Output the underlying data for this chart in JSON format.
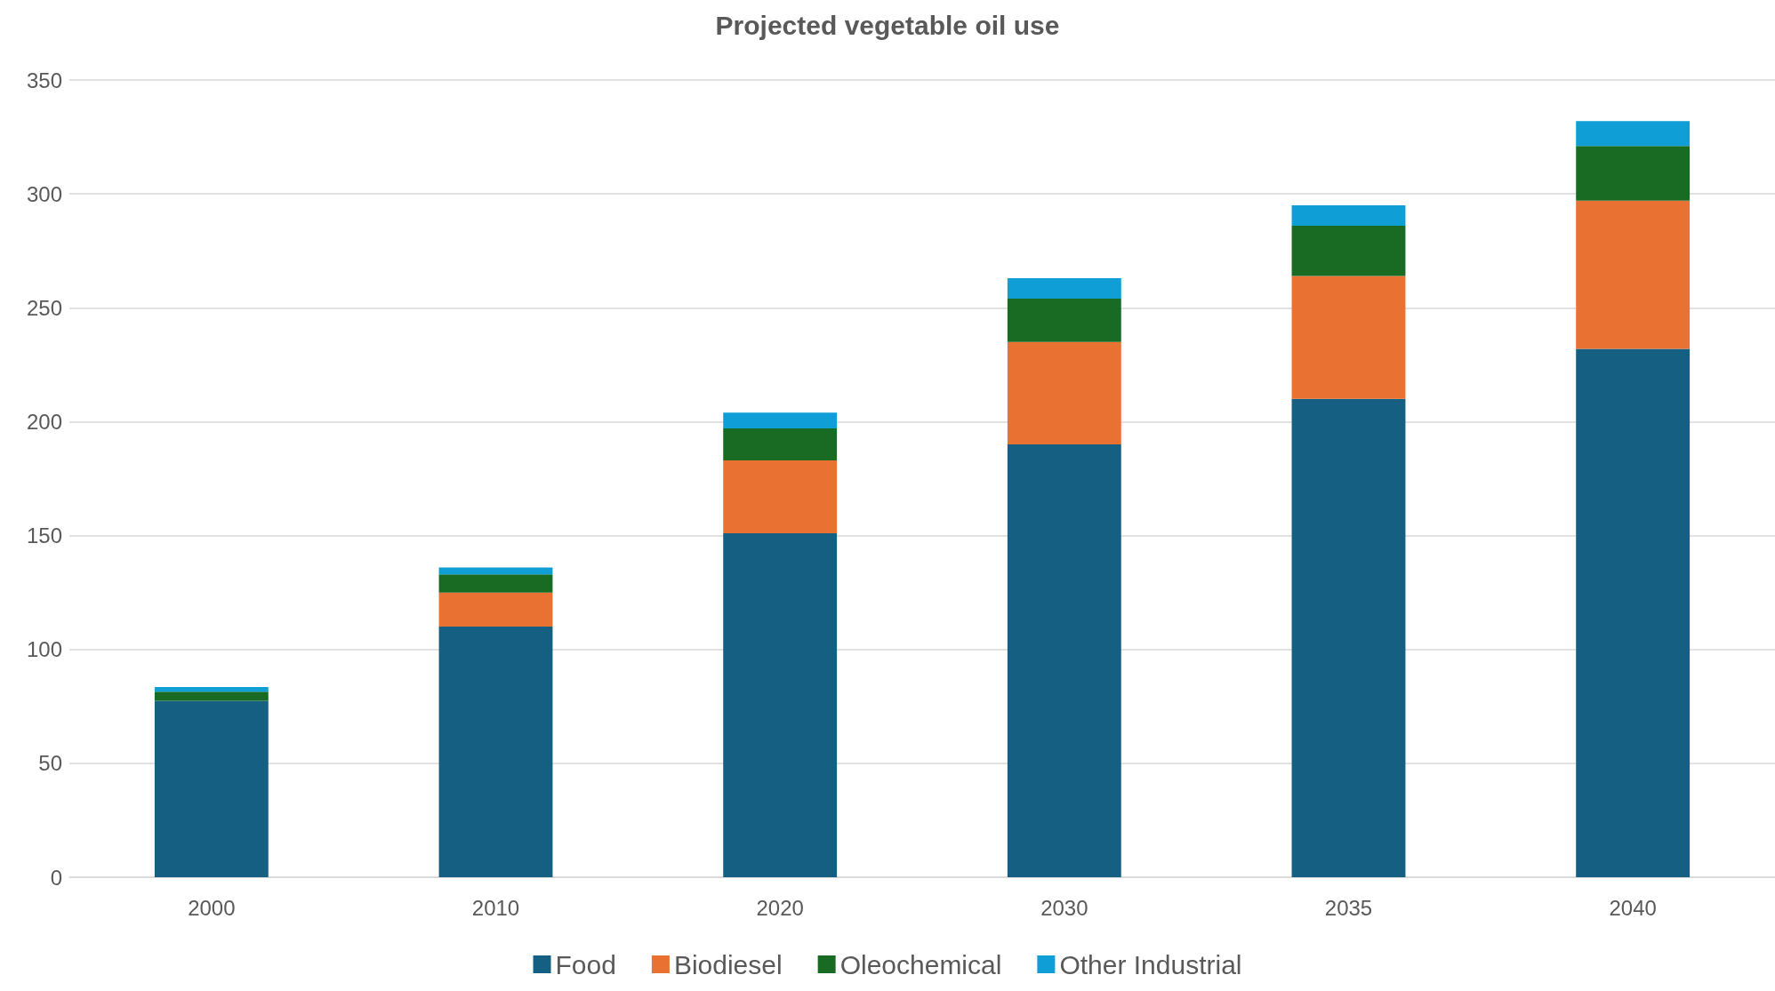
{
  "chart_data": {
    "type": "bar",
    "title": "Projected vegetable oil use",
    "stacked": true,
    "categories": [
      "2000",
      "2010",
      "2020",
      "2030",
      "2035",
      "2040"
    ],
    "series": [
      {
        "name": "Food",
        "color": "#156082",
        "values": [
          77.5,
          110,
          151,
          190,
          210,
          232
        ]
      },
      {
        "name": "Biodiesel",
        "color": "#e97132",
        "values": [
          null,
          15,
          32,
          45,
          54,
          65
        ]
      },
      {
        "name": "Oleochemical",
        "color": "#196b24",
        "values": [
          4,
          8,
          14,
          19,
          22,
          24
        ]
      },
      {
        "name": "Other Industrial",
        "color": "#0f9ed5",
        "values": [
          2,
          3,
          7,
          9,
          9,
          11
        ]
      }
    ],
    "ylim": [
      0,
      350
    ],
    "yticks": [
      0,
      50,
      100,
      150,
      200,
      250,
      300,
      350
    ],
    "grid": "y",
    "legend": "bottom"
  }
}
